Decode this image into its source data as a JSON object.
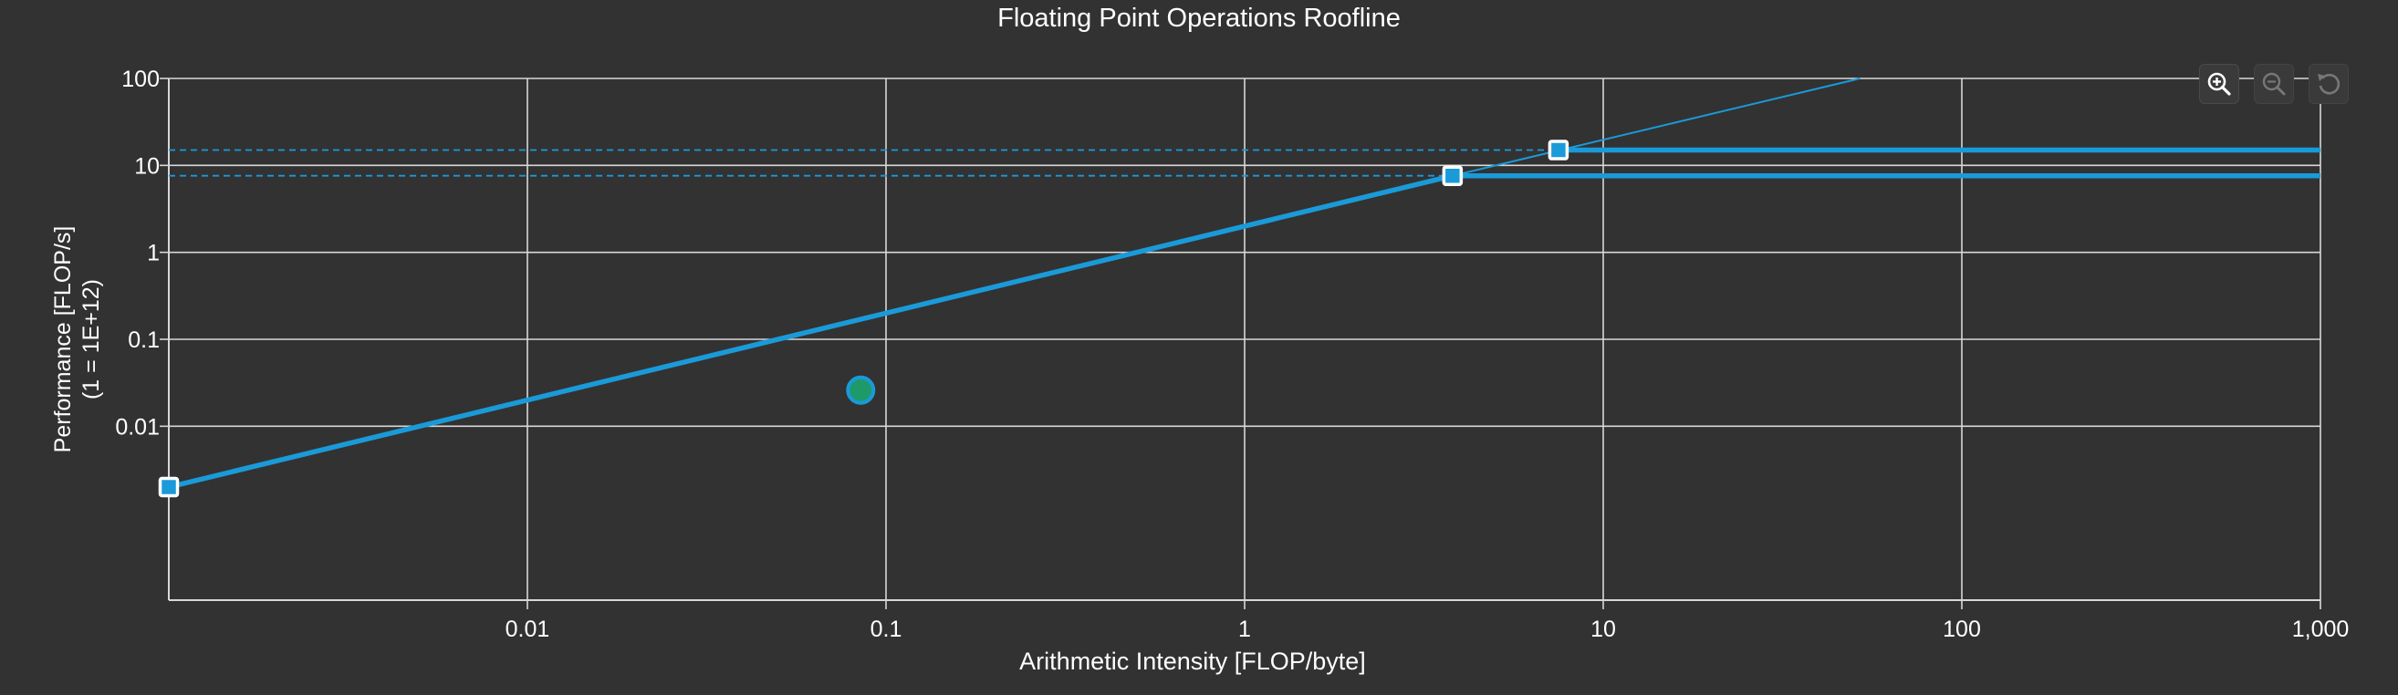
{
  "chart_data": {
    "type": "line",
    "title": "Floating Point Operations Roofline",
    "xlabel": "Arithmetic Intensity [FLOP/byte]",
    "ylabel": "Performance [FLOP/s]",
    "ylabel_line2": "(1 = 1E+12)",
    "x_scale": "log",
    "y_scale": "log",
    "xlim": [
      0.001,
      1000
    ],
    "ylim": [
      0.0001,
      100
    ],
    "grid": true,
    "x_tick_values": [
      0.01,
      0.1,
      1,
      10,
      100,
      1000
    ],
    "x_tick_labels": [
      "0.01",
      "0.1",
      "1",
      "10",
      "100",
      "1,000"
    ],
    "y_tick_values": [
      0.01,
      0.1,
      1,
      10,
      100
    ],
    "y_tick_labels": [
      "0.01",
      "0.1",
      "1",
      "10",
      "100"
    ],
    "series": [
      {
        "kind": "bandwidth-roof",
        "x": [
          0.001,
          3.8
        ],
        "y": [
          0.002,
          7.6
        ]
      },
      {
        "kind": "bandwidth-extension",
        "x": [
          3.8,
          52
        ],
        "y": [
          7.6,
          100
        ]
      },
      {
        "kind": "compute-roof",
        "x": [
          3.8,
          1000
        ],
        "y": [
          7.6,
          7.6
        ]
      },
      {
        "kind": "compute-roof",
        "x": [
          7.5,
          1000
        ],
        "y": [
          15,
          15
        ]
      },
      {
        "kind": "compute-ceiling-dashed",
        "x": [
          0.001,
          3.8
        ],
        "y": [
          7.6,
          7.6
        ]
      },
      {
        "kind": "compute-ceiling-dashed",
        "x": [
          0.001,
          7.5
        ],
        "y": [
          15,
          15
        ]
      }
    ],
    "ridge_points": [
      {
        "x": 0.001,
        "y": 0.002
      },
      {
        "x": 3.8,
        "y": 7.6
      },
      {
        "x": 7.5,
        "y": 15
      }
    ],
    "measurements": [
      {
        "x": 0.085,
        "y": 0.026
      }
    ],
    "colors": {
      "background": "#323232",
      "grid": "#d8d8d8",
      "roof": "#1a9ad9",
      "measurement_fill": "#1e9a6a",
      "measurement_stroke": "#1a9ad9",
      "text": "#ffffff"
    }
  },
  "toolbar": {
    "zoom_in_icon": "zoom-in-icon",
    "zoom_out_icon": "zoom-out-icon",
    "reset_icon": "reset-icon"
  }
}
